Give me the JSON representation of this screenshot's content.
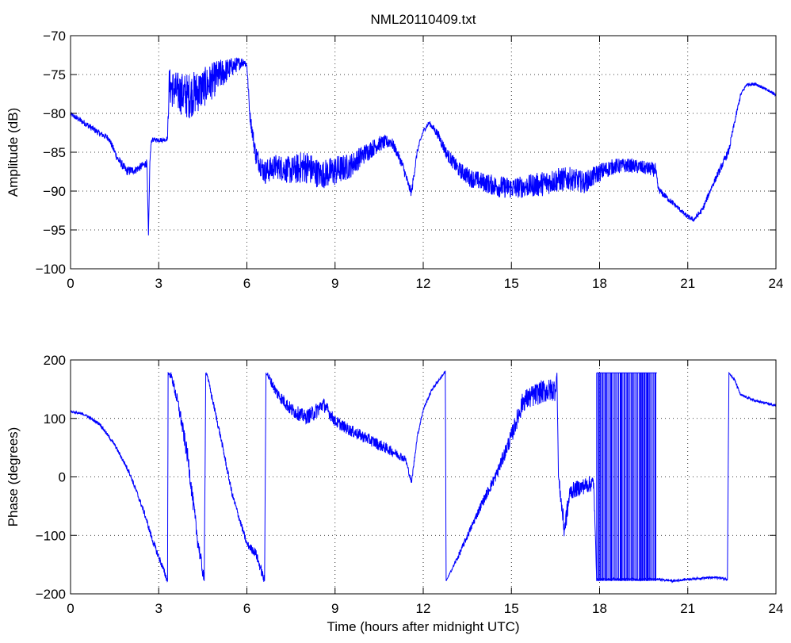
{
  "figure": {
    "title": "NML20110409.txt",
    "trace_color": "#0000ff",
    "background": "#ffffff"
  },
  "chart_data": [
    {
      "type": "line",
      "title": "NML20110409.txt",
      "xlabel": "",
      "ylabel": "Amplitude (dB)",
      "xlim": [
        0,
        24
      ],
      "ylim": [
        -100,
        -70
      ],
      "xticks": [
        0,
        3,
        6,
        9,
        12,
        15,
        18,
        21,
        24
      ],
      "yticks": [
        -100,
        -95,
        -90,
        -85,
        -80,
        -75,
        -70
      ],
      "grid": "dotted",
      "series": [
        {
          "color": "#0000ff",
          "x": [
            0,
            0.5,
            1.0,
            1.3,
            1.6,
            1.9,
            2.2,
            2.5,
            2.6,
            2.65,
            2.7,
            2.75,
            2.8,
            3.2,
            3.3,
            3.35,
            3.6,
            4.0,
            4.5,
            5.0,
            5.5,
            5.9,
            6.0,
            6.1,
            6.3,
            6.6,
            7.0,
            7.5,
            8.0,
            8.5,
            9.0,
            9.5,
            10.0,
            10.5,
            10.9,
            11.1,
            11.3,
            11.5,
            11.6,
            11.8,
            12.0,
            12.2,
            12.5,
            12.8,
            13.2,
            13.6,
            14.0,
            14.5,
            15.0,
            15.5,
            16.0,
            16.5,
            17.0,
            17.5,
            18.0,
            18.5,
            19.0,
            19.5,
            19.9,
            20.0,
            20.3,
            20.6,
            20.9,
            21.0,
            21.2,
            21.5,
            21.8,
            22.2,
            22.4,
            22.6,
            22.8,
            23.0,
            23.3,
            23.6,
            24.0
          ],
          "y": [
            -80.1,
            -81.3,
            -82.6,
            -83.2,
            -85.8,
            -87.4,
            -87.3,
            -86.6,
            -86.4,
            -95.7,
            -86.2,
            -83.5,
            -83.4,
            -83.4,
            -83.2,
            -76.5,
            -77.2,
            -77.8,
            -76.8,
            -75.3,
            -74.0,
            -73.3,
            -73.8,
            -80.2,
            -85.3,
            -87.6,
            -86.8,
            -87.4,
            -86.8,
            -87.9,
            -87.4,
            -86.8,
            -85.2,
            -83.9,
            -83.6,
            -85.0,
            -86.7,
            -89.3,
            -90.2,
            -84.8,
            -82.3,
            -81.2,
            -82.7,
            -85.2,
            -87.2,
            -88.3,
            -88.8,
            -89.4,
            -89.6,
            -89.4,
            -89.1,
            -88.6,
            -88.4,
            -88.9,
            -87.6,
            -86.8,
            -86.7,
            -87.0,
            -87.3,
            -89.8,
            -90.9,
            -91.9,
            -93.0,
            -93.3,
            -93.7,
            -92.4,
            -89.6,
            -86.4,
            -84.8,
            -81.0,
            -77.6,
            -76.3,
            -76.2,
            -76.8,
            -77.6
          ],
          "noise": [
            0.3,
            0.4,
            0.4,
            0.4,
            0.5,
            0.6,
            0.5,
            0.5,
            0.5,
            0.0,
            0.5,
            0.3,
            0.3,
            0.3,
            0.3,
            2.4,
            2.6,
            3.0,
            2.6,
            2.2,
            1.2,
            0.6,
            0.5,
            0.8,
            1.3,
            1.6,
            1.6,
            1.8,
            2.2,
            1.8,
            2.0,
            1.6,
            1.3,
            1.0,
            0.8,
            0.6,
            0.6,
            0.6,
            0.6,
            0.4,
            0.3,
            0.3,
            0.6,
            0.8,
            1.0,
            1.2,
            1.2,
            1.4,
            1.4,
            1.4,
            1.6,
            1.6,
            1.5,
            1.4,
            1.2,
            1.0,
            0.9,
            0.9,
            0.9,
            0.4,
            0.4,
            0.3,
            0.3,
            0.3,
            0.3,
            0.4,
            0.4,
            0.5,
            0.5,
            0.4,
            0.3,
            0.2,
            0.2,
            0.2,
            0.2
          ]
        }
      ]
    },
    {
      "type": "line",
      "title": "",
      "xlabel": "Time (hours after midnight UTC)",
      "ylabel": "Phase (degrees)",
      "xlim": [
        0,
        24
      ],
      "ylim": [
        -200,
        200
      ],
      "xticks": [
        0,
        3,
        6,
        9,
        12,
        15,
        18,
        21,
        24
      ],
      "yticks": [
        -200,
        -100,
        0,
        100,
        200
      ],
      "grid": "dotted",
      "series": [
        {
          "color": "#0000ff",
          "x": [
            0,
            0.5,
            1.0,
            1.5,
            2.0,
            2.5,
            2.8,
            3.1,
            3.3,
            3.32,
            3.45,
            3.7,
            4.0,
            4.3,
            4.55,
            4.6,
            4.65,
            4.75,
            5.1,
            5.5,
            6.0,
            6.3,
            6.6,
            6.65,
            6.7,
            7.0,
            7.5,
            8.0,
            8.3,
            8.6,
            9.0,
            9.5,
            10.0,
            10.5,
            11.0,
            11.4,
            11.6,
            11.8,
            12.0,
            12.3,
            12.75,
            12.78,
            13.2,
            13.6,
            14.0,
            14.5,
            15.0,
            15.4,
            16.0,
            16.5,
            16.55,
            16.6,
            16.8,
            17.0,
            17.5,
            17.8,
            17.9,
            20.0,
            20.5,
            21.0,
            21.5,
            22.0,
            22.35,
            22.4,
            22.6,
            22.8,
            23.3,
            24.0
          ],
          "y": [
            112,
            106,
            90,
            55,
            8,
            -60,
            -110,
            -150,
            -178,
            178,
            170,
            115,
            30,
            -100,
            -178,
            178,
            175,
            150,
            70,
            -30,
            -115,
            -130,
            -178,
            178,
            175,
            145,
            115,
            102,
            110,
            125,
            95,
            80,
            68,
            55,
            42,
            30,
            -10,
            70,
            115,
            150,
            180,
            -178,
            -135,
            -90,
            -45,
            5,
            70,
            130,
            145,
            150,
            178,
            0,
            -90,
            -25,
            -15,
            -10,
            -175,
            -175,
            -178,
            -175,
            -173,
            -172,
            -175,
            178,
            165,
            140,
            130,
            122
          ],
          "noise": [
            2,
            2,
            3,
            3,
            4,
            5,
            6,
            6,
            6,
            0,
            8,
            12,
            15,
            14,
            10,
            0,
            4,
            6,
            6,
            6,
            6,
            8,
            8,
            0,
            6,
            10,
            12,
            12,
            14,
            12,
            10,
            10,
            10,
            10,
            8,
            6,
            4,
            4,
            3,
            3,
            2,
            0,
            5,
            6,
            8,
            10,
            14,
            18,
            20,
            20,
            0,
            10,
            20,
            14,
            14,
            14,
            2,
            2,
            2,
            2,
            2,
            2,
            2,
            0,
            3,
            2,
            2,
            2
          ]
        }
      ],
      "wrap_region": {
        "x_start": 17.9,
        "x_end": 19.95,
        "y_low": -178,
        "y_high": 178
      }
    }
  ]
}
